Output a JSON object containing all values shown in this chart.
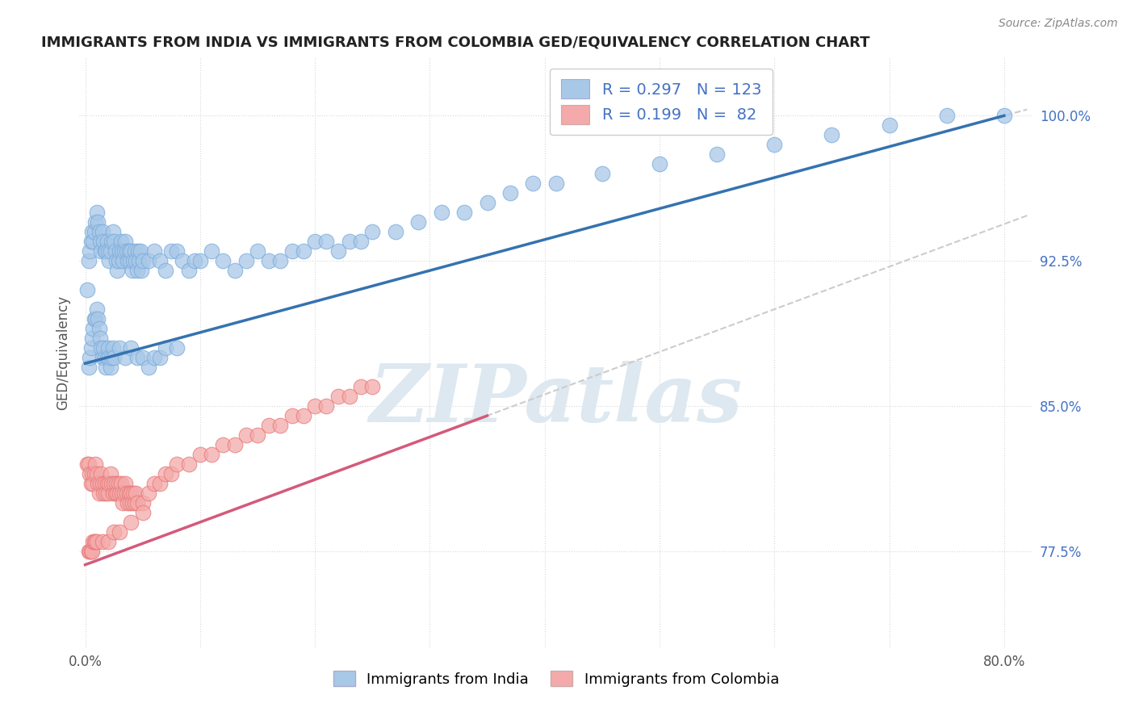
{
  "title": "IMMIGRANTS FROM INDIA VS IMMIGRANTS FROM COLOMBIA GED/EQUIVALENCY CORRELATION CHART",
  "source": "Source: ZipAtlas.com",
  "ylabel": "GED/Equivalency",
  "legend_india": "Immigrants from India",
  "legend_colombia": "Immigrants from Colombia",
  "R_india": 0.297,
  "N_india": 123,
  "R_colombia": 0.199,
  "N_colombia": 82,
  "color_india": "#a8c8e8",
  "color_india_edge": "#7aabda",
  "color_india_line": "#3572b0",
  "color_colombia": "#f4aaaa",
  "color_colombia_edge": "#e87878",
  "color_colombia_line": "#d45a7a",
  "color_dashed": "#cccccc",
  "xlim_min": -0.005,
  "xlim_max": 0.825,
  "ylim_min": 0.725,
  "ylim_max": 1.03,
  "ytick_right": true,
  "ytick_color": "#4472c4",
  "background_color": "#ffffff",
  "grid_color": "#d8d8d8",
  "watermark": "ZIPatlas",
  "watermark_color": "#dde8f0",
  "india_x": [
    0.002,
    0.003,
    0.004,
    0.005,
    0.006,
    0.007,
    0.008,
    0.009,
    0.01,
    0.011,
    0.012,
    0.013,
    0.014,
    0.015,
    0.016,
    0.017,
    0.018,
    0.019,
    0.02,
    0.021,
    0.022,
    0.023,
    0.024,
    0.025,
    0.026,
    0.027,
    0.028,
    0.029,
    0.03,
    0.031,
    0.032,
    0.033,
    0.034,
    0.035,
    0.036,
    0.037,
    0.038,
    0.039,
    0.04,
    0.041,
    0.042,
    0.043,
    0.044,
    0.045,
    0.046,
    0.047,
    0.048,
    0.049,
    0.05,
    0.055,
    0.06,
    0.065,
    0.07,
    0.075,
    0.08,
    0.085,
    0.09,
    0.095,
    0.1,
    0.11,
    0.12,
    0.13,
    0.14,
    0.15,
    0.16,
    0.17,
    0.18,
    0.19,
    0.2,
    0.21,
    0.22,
    0.23,
    0.24,
    0.25,
    0.27,
    0.29,
    0.31,
    0.33,
    0.35,
    0.37,
    0.39,
    0.41,
    0.45,
    0.5,
    0.55,
    0.6,
    0.65,
    0.7,
    0.75,
    0.8,
    0.003,
    0.004,
    0.005,
    0.006,
    0.007,
    0.008,
    0.009,
    0.01,
    0.011,
    0.012,
    0.013,
    0.014,
    0.015,
    0.016,
    0.017,
    0.018,
    0.019,
    0.02,
    0.021,
    0.022,
    0.023,
    0.024,
    0.025,
    0.03,
    0.035,
    0.04,
    0.045,
    0.05,
    0.055,
    0.06,
    0.065,
    0.07,
    0.08
  ],
  "india_y": [
    0.91,
    0.925,
    0.93,
    0.935,
    0.94,
    0.935,
    0.94,
    0.945,
    0.95,
    0.945,
    0.94,
    0.935,
    0.93,
    0.94,
    0.935,
    0.93,
    0.93,
    0.935,
    0.93,
    0.925,
    0.93,
    0.935,
    0.94,
    0.935,
    0.93,
    0.925,
    0.92,
    0.925,
    0.93,
    0.935,
    0.93,
    0.925,
    0.93,
    0.935,
    0.93,
    0.925,
    0.93,
    0.925,
    0.93,
    0.92,
    0.925,
    0.93,
    0.925,
    0.92,
    0.93,
    0.925,
    0.93,
    0.92,
    0.925,
    0.925,
    0.93,
    0.925,
    0.92,
    0.93,
    0.93,
    0.925,
    0.92,
    0.925,
    0.925,
    0.93,
    0.925,
    0.92,
    0.925,
    0.93,
    0.925,
    0.925,
    0.93,
    0.93,
    0.935,
    0.935,
    0.93,
    0.935,
    0.935,
    0.94,
    0.94,
    0.945,
    0.95,
    0.95,
    0.955,
    0.96,
    0.965,
    0.965,
    0.97,
    0.975,
    0.98,
    0.985,
    0.99,
    0.995,
    1.0,
    1.0,
    0.87,
    0.875,
    0.88,
    0.885,
    0.89,
    0.895,
    0.895,
    0.9,
    0.895,
    0.89,
    0.885,
    0.88,
    0.875,
    0.88,
    0.875,
    0.87,
    0.875,
    0.88,
    0.875,
    0.87,
    0.875,
    0.88,
    0.875,
    0.88,
    0.875,
    0.88,
    0.875,
    0.875,
    0.87,
    0.875,
    0.875,
    0.88,
    0.88
  ],
  "colombia_x": [
    0.002,
    0.003,
    0.004,
    0.005,
    0.006,
    0.007,
    0.008,
    0.009,
    0.01,
    0.011,
    0.012,
    0.013,
    0.014,
    0.015,
    0.016,
    0.017,
    0.018,
    0.019,
    0.02,
    0.021,
    0.022,
    0.023,
    0.024,
    0.025,
    0.026,
    0.027,
    0.028,
    0.029,
    0.03,
    0.031,
    0.032,
    0.033,
    0.034,
    0.035,
    0.036,
    0.037,
    0.038,
    0.039,
    0.04,
    0.041,
    0.042,
    0.043,
    0.044,
    0.045,
    0.05,
    0.055,
    0.06,
    0.065,
    0.07,
    0.075,
    0.08,
    0.09,
    0.1,
    0.11,
    0.12,
    0.13,
    0.14,
    0.15,
    0.16,
    0.17,
    0.18,
    0.19,
    0.2,
    0.21,
    0.22,
    0.23,
    0.24,
    0.25,
    0.003,
    0.004,
    0.005,
    0.006,
    0.007,
    0.008,
    0.009,
    0.01,
    0.015,
    0.02,
    0.025,
    0.03,
    0.04,
    0.05
  ],
  "colombia_y": [
    0.82,
    0.82,
    0.815,
    0.81,
    0.815,
    0.81,
    0.815,
    0.82,
    0.815,
    0.81,
    0.805,
    0.81,
    0.815,
    0.81,
    0.805,
    0.81,
    0.805,
    0.81,
    0.805,
    0.81,
    0.815,
    0.81,
    0.805,
    0.81,
    0.805,
    0.81,
    0.805,
    0.81,
    0.805,
    0.81,
    0.805,
    0.8,
    0.805,
    0.81,
    0.805,
    0.8,
    0.805,
    0.8,
    0.805,
    0.8,
    0.805,
    0.8,
    0.805,
    0.8,
    0.8,
    0.805,
    0.81,
    0.81,
    0.815,
    0.815,
    0.82,
    0.82,
    0.825,
    0.825,
    0.83,
    0.83,
    0.835,
    0.835,
    0.84,
    0.84,
    0.845,
    0.845,
    0.85,
    0.85,
    0.855,
    0.855,
    0.86,
    0.86,
    0.775,
    0.775,
    0.775,
    0.775,
    0.78,
    0.78,
    0.78,
    0.78,
    0.78,
    0.78,
    0.785,
    0.785,
    0.79,
    0.795
  ]
}
